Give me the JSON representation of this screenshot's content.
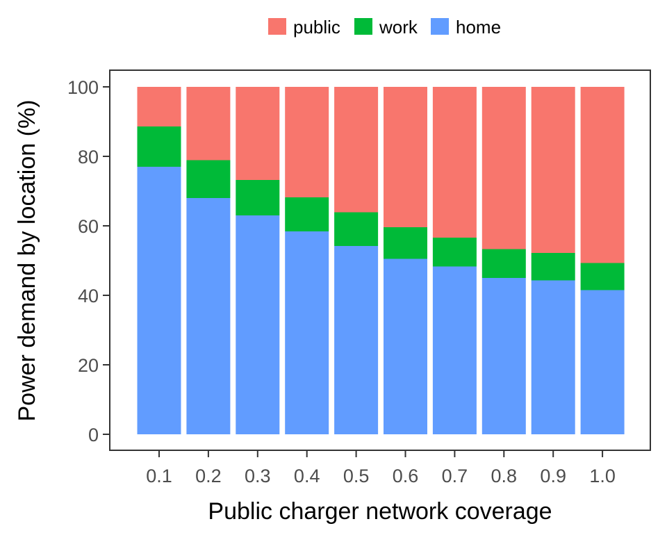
{
  "chart_data": {
    "type": "bar",
    "stacked": true,
    "title": "",
    "xlabel": "Public charger network coverage",
    "ylabel": "Power demand by location (%)",
    "categories": [
      "0.1",
      "0.2",
      "0.3",
      "0.4",
      "0.5",
      "0.6",
      "0.7",
      "0.8",
      "0.9",
      "1.0"
    ],
    "ylim": [
      0,
      100
    ],
    "yticks": [
      "0",
      "20",
      "40",
      "60",
      "80",
      "100"
    ],
    "grid": false,
    "legend_position": "top",
    "series": [
      {
        "name": "home",
        "color": "#619CFF",
        "values": [
          77.0,
          68.0,
          63.0,
          58.4,
          54.2,
          50.5,
          48.3,
          45.0,
          44.3,
          41.5
        ]
      },
      {
        "name": "work",
        "color": "#00BA38",
        "values": [
          11.6,
          10.9,
          10.2,
          9.8,
          9.7,
          9.1,
          8.3,
          8.3,
          7.9,
          7.8
        ]
      },
      {
        "name": "public",
        "color": "#F8766D",
        "values": [
          11.4,
          21.1,
          26.8,
          31.8,
          36.1,
          40.4,
          43.4,
          46.7,
          47.8,
          50.7
        ]
      }
    ],
    "legend": [
      {
        "name": "public",
        "color": "#F8766D"
      },
      {
        "name": "work",
        "color": "#00BA38"
      },
      {
        "name": "home",
        "color": "#619CFF"
      }
    ]
  }
}
